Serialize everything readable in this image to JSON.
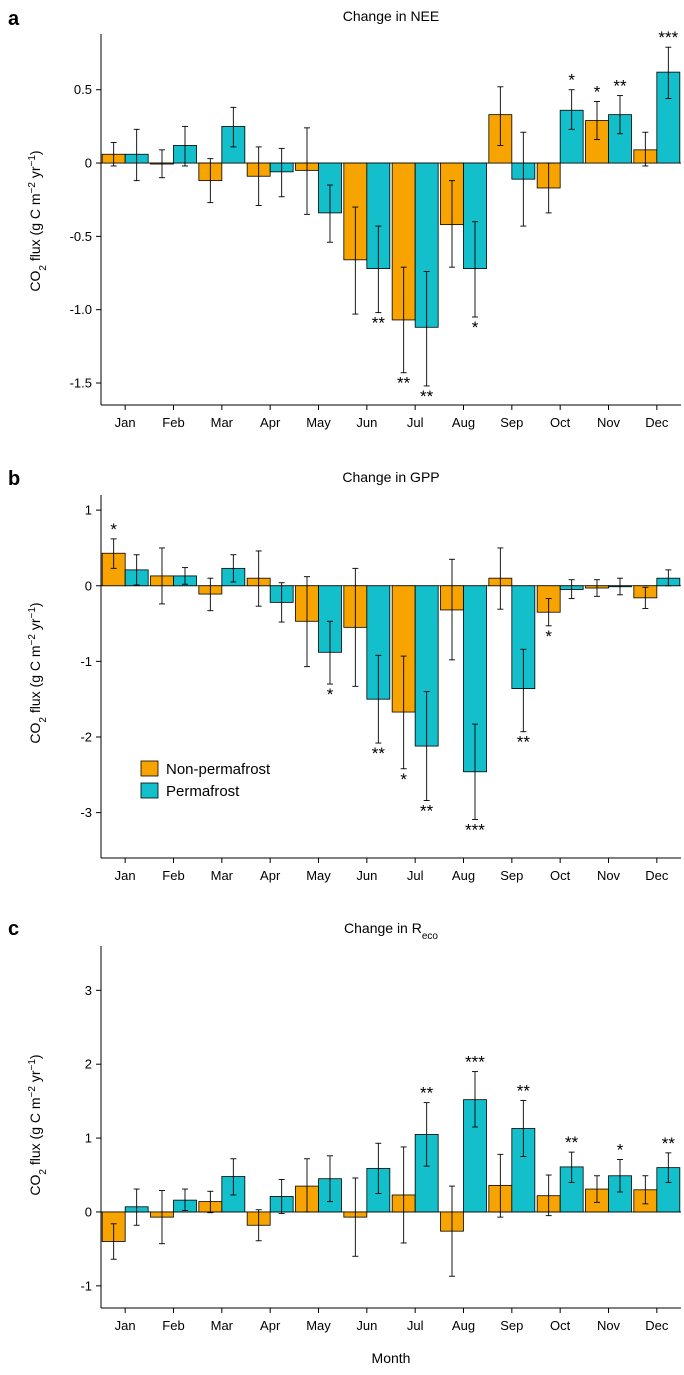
{
  "colors": {
    "non_permafrost": "#F7A400",
    "permafrost": "#12BFCB"
  },
  "legend": {
    "non_permafrost": "Non-permafrost",
    "permafrost": "Permafrost"
  },
  "xlabel": "Month",
  "chart_data": [
    {
      "type": "bar",
      "panel": "a",
      "title": "Change in NEE",
      "ylabel": "CO₂ flux (g C m⁻² yr⁻¹)",
      "ylim": [
        -1.65,
        0.88
      ],
      "yticks": [
        -1.5,
        -1.0,
        -0.5,
        0,
        0.5
      ],
      "ytick_labels": [
        "-1.5",
        "-1.0",
        "-0.5",
        "0",
        "0.5"
      ],
      "categories": [
        "Jan",
        "Feb",
        "Mar",
        "Apr",
        "May",
        "Jun",
        "Jul",
        "Aug",
        "Sep",
        "Oct",
        "Nov",
        "Dec"
      ],
      "series": [
        {
          "name": "Non-permafrost",
          "values": [
            0.06,
            0.0,
            -0.12,
            -0.09,
            -0.05,
            -0.66,
            -1.07,
            -0.42,
            0.33,
            -0.17,
            0.29,
            0.09
          ],
          "err_low": [
            -0.02,
            -0.1,
            -0.27,
            -0.29,
            -0.35,
            -1.03,
            -1.43,
            -0.71,
            0.12,
            -0.34,
            0.16,
            -0.02
          ],
          "err_high": [
            0.14,
            0.09,
            0.03,
            0.11,
            0.24,
            -0.3,
            -0.71,
            -0.12,
            0.52,
            0.0,
            0.42,
            0.21
          ],
          "sig": [
            "",
            "",
            "",
            "",
            "",
            "",
            "**",
            "",
            "",
            "",
            "*",
            ""
          ]
        },
        {
          "name": "Permafrost",
          "values": [
            0.06,
            0.12,
            0.25,
            -0.06,
            -0.34,
            -0.72,
            -1.12,
            -0.72,
            -0.11,
            0.36,
            0.33,
            0.62
          ],
          "err_low": [
            -0.12,
            -0.02,
            0.11,
            -0.23,
            -0.54,
            -1.02,
            -1.52,
            -1.05,
            -0.43,
            0.23,
            0.2,
            0.44
          ],
          "err_high": [
            0.23,
            0.25,
            0.38,
            0.1,
            -0.15,
            -0.43,
            -0.74,
            -0.4,
            0.21,
            0.5,
            0.46,
            0.79
          ],
          "sig": [
            "",
            "",
            "",
            "",
            "",
            "**",
            "**",
            "*",
            "",
            "*",
            "**",
            "***"
          ]
        }
      ]
    },
    {
      "type": "bar",
      "panel": "b",
      "title": "Change in GPP",
      "ylabel": "CO₂ flux (g C m⁻² yr⁻¹)",
      "ylim": [
        -3.6,
        1.2
      ],
      "yticks": [
        -3,
        -2,
        -1,
        0,
        1
      ],
      "ytick_labels": [
        "-3",
        "-2",
        "-1",
        "0",
        "1"
      ],
      "categories": [
        "Jan",
        "Feb",
        "Mar",
        "Apr",
        "May",
        "Jun",
        "Jul",
        "Aug",
        "Sep",
        "Oct",
        "Nov",
        "Dec"
      ],
      "series": [
        {
          "name": "Non-permafrost",
          "values": [
            0.43,
            0.13,
            -0.11,
            0.1,
            -0.47,
            -0.55,
            -1.67,
            -0.32,
            0.1,
            -0.35,
            -0.03,
            -0.16
          ],
          "err_low": [
            0.23,
            -0.24,
            -0.33,
            -0.27,
            -1.07,
            -1.33,
            -2.42,
            -0.98,
            -0.31,
            -0.53,
            -0.14,
            -0.3
          ],
          "err_high": [
            0.62,
            0.5,
            0.1,
            0.46,
            0.12,
            0.23,
            -0.93,
            0.35,
            0.5,
            -0.17,
            0.08,
            -0.02
          ],
          "sig": [
            "*",
            "",
            "",
            "",
            "",
            "",
            "*",
            "",
            "",
            "*",
            "",
            ""
          ]
        },
        {
          "name": "Permafrost",
          "values": [
            0.21,
            0.13,
            0.23,
            -0.22,
            -0.88,
            -1.5,
            -2.12,
            -2.46,
            -1.36,
            -0.05,
            -0.01,
            0.1
          ],
          "err_low": [
            0.01,
            0.02,
            0.05,
            -0.48,
            -1.3,
            -2.08,
            -2.84,
            -3.09,
            -1.93,
            -0.17,
            -0.12,
            0.0
          ],
          "err_high": [
            0.41,
            0.24,
            0.41,
            0.04,
            -0.47,
            -0.92,
            -1.4,
            -1.83,
            -0.84,
            0.08,
            0.1,
            0.21
          ],
          "sig": [
            "",
            "",
            "",
            "",
            "*",
            "**",
            "**",
            "***",
            "**",
            "",
            "",
            ""
          ]
        }
      ]
    },
    {
      "type": "bar",
      "panel": "c",
      "title": "Change in R",
      "title_subscript": "eco",
      "ylabel": "CO₂ flux (g C m⁻² yr⁻¹)",
      "ylim": [
        -1.3,
        3.6
      ],
      "yticks": [
        -1,
        0,
        1,
        2,
        3
      ],
      "ytick_labels": [
        "-1",
        "0",
        "1",
        "2",
        "3"
      ],
      "categories": [
        "Jan",
        "Feb",
        "Mar",
        "Apr",
        "May",
        "Jun",
        "Jul",
        "Aug",
        "Sep",
        "Oct",
        "Nov",
        "Dec"
      ],
      "series": [
        {
          "name": "Non-permafrost",
          "values": [
            -0.4,
            -0.07,
            0.14,
            -0.18,
            0.35,
            -0.07,
            0.23,
            -0.26,
            0.36,
            0.22,
            0.31,
            0.3
          ],
          "err_low": [
            -0.64,
            -0.43,
            -0.01,
            -0.39,
            0.0,
            -0.6,
            -0.42,
            -0.87,
            -0.07,
            -0.05,
            0.13,
            0.11
          ],
          "err_high": [
            -0.16,
            0.29,
            0.28,
            0.03,
            0.72,
            0.46,
            0.88,
            0.35,
            0.78,
            0.5,
            0.49,
            0.49
          ],
          "sig": [
            "",
            "",
            "",
            "",
            "",
            "",
            "",
            "",
            "",
            "",
            "",
            ""
          ]
        },
        {
          "name": "Permafrost",
          "values": [
            0.07,
            0.16,
            0.48,
            0.21,
            0.45,
            0.59,
            1.05,
            1.52,
            1.13,
            0.61,
            0.49,
            0.6
          ],
          "err_low": [
            -0.18,
            0.02,
            0.23,
            -0.02,
            0.14,
            0.25,
            0.62,
            1.15,
            0.75,
            0.4,
            0.27,
            0.4
          ],
          "err_high": [
            0.31,
            0.31,
            0.72,
            0.44,
            0.76,
            0.93,
            1.48,
            1.9,
            1.51,
            0.81,
            0.71,
            0.8
          ],
          "sig": [
            "",
            "",
            "",
            "",
            "",
            "",
            "**",
            "***",
            "**",
            "**",
            "*",
            "**"
          ]
        }
      ]
    }
  ]
}
